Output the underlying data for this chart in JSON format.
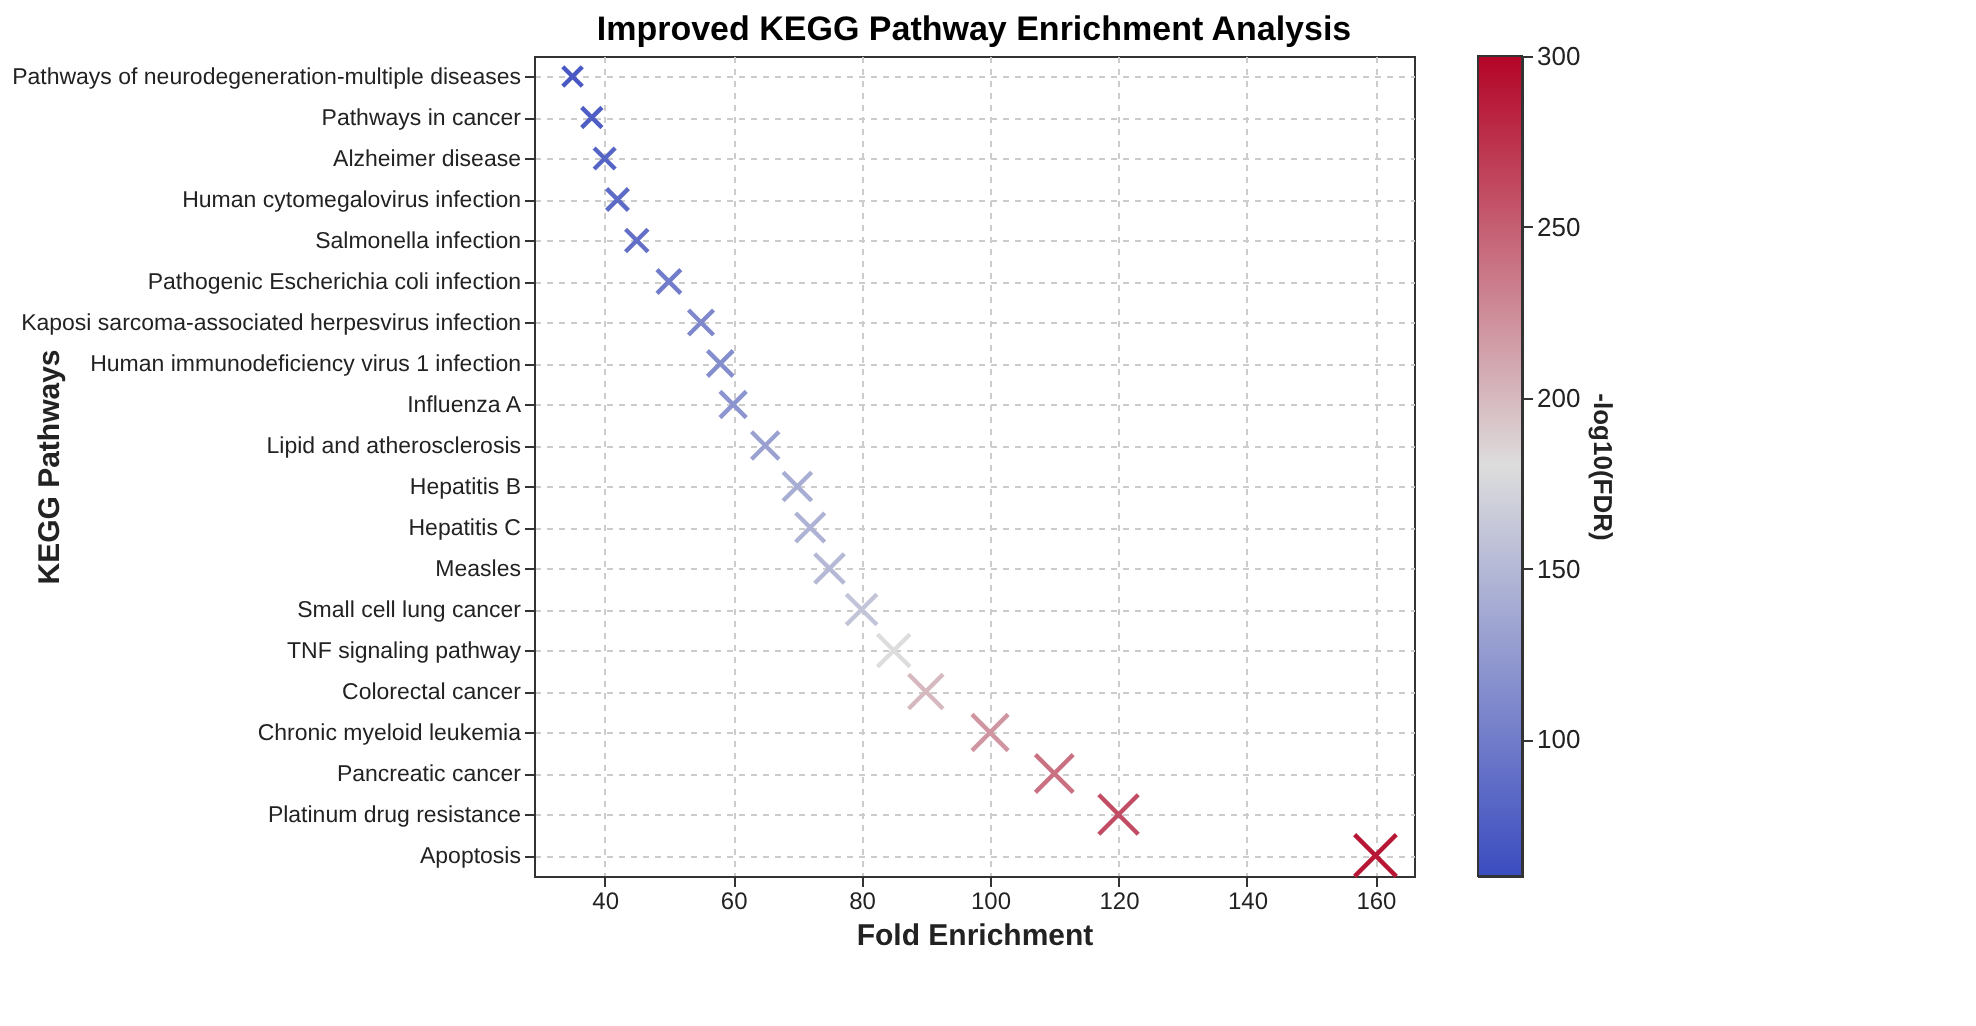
{
  "chart_data": {
    "type": "scatter",
    "title": "Improved KEGG Pathway Enrichment Analysis",
    "xlabel": "Fold Enrichment",
    "ylabel": "KEGG Pathways",
    "clabel": "-log10(FDR)",
    "categories": [
      "Pathways of neurodegeneration-multiple diseases",
      "Pathways in cancer",
      "Alzheimer disease",
      "Human cytomegalovirus infection",
      "Salmonella infection",
      "Pathogenic Escherichia coli infection",
      "Kaposi sarcoma-associated herpesvirus infection",
      "Human immunodeficiency virus 1 infection",
      "Influenza A",
      "Lipid and atherosclerosis",
      "Hepatitis B",
      "Hepatitis C",
      "Measles",
      "Small cell lung cancer",
      "TNF signaling pathway",
      "Colorectal cancer",
      "Chronic myeloid leukemia",
      "Pancreatic cancer",
      "Platinum drug resistance",
      "Apoptosis"
    ],
    "values": [
      35,
      38,
      40,
      42,
      45,
      50,
      55,
      58,
      60,
      65,
      70,
      72,
      75,
      80,
      85,
      90,
      100,
      110,
      120,
      160
    ],
    "cvalues": [
      70,
      75,
      80,
      85,
      90,
      100,
      110,
      115,
      120,
      130,
      140,
      145,
      150,
      160,
      180,
      200,
      220,
      240,
      260,
      290
    ],
    "clim": [
      60,
      300
    ],
    "cticks": [
      100,
      150,
      200,
      250,
      300
    ],
    "xlim": [
      29,
      166
    ],
    "xticks": [
      40,
      60,
      80,
      100,
      120,
      140,
      160
    ],
    "marker": "cross",
    "grid": true,
    "orientation": "horizontal"
  }
}
